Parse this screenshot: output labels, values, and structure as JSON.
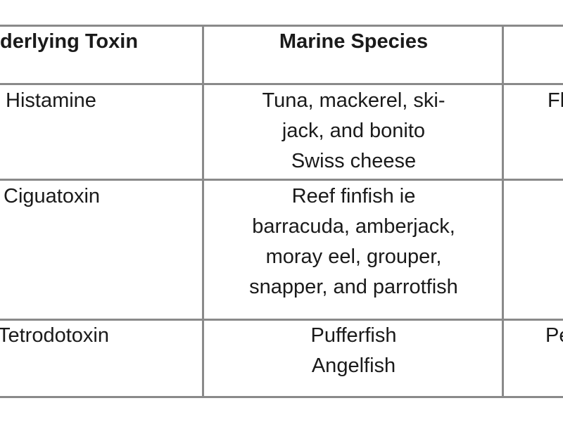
{
  "table": {
    "headers": [
      "derlying Toxin",
      "Marine Species",
      ""
    ],
    "rows": [
      {
        "toxin": "Histamine",
        "species": [
          "Tuna, mackerel, ski-",
          "jack, and bonito",
          "Swiss cheese"
        ],
        "third": "Flus"
      },
      {
        "toxin": "Ciguatoxin",
        "species": [
          "Reef finfish ie",
          "barracuda, amberjack,",
          "moray eel, grouper,",
          "snapper, and parrotfish"
        ],
        "third": ""
      },
      {
        "toxin": "Tetrodotoxin",
        "species": [
          "Pufferfish",
          "Angelfish"
        ],
        "third": "Pe"
      }
    ]
  }
}
